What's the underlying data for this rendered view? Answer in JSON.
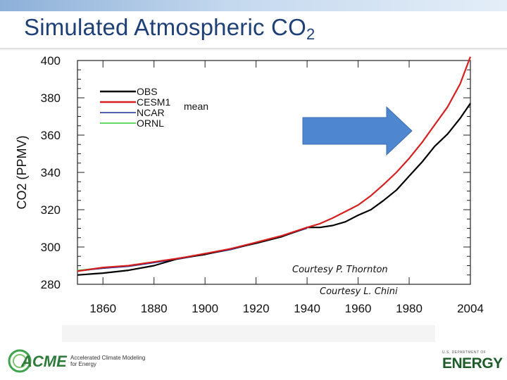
{
  "title": {
    "main": "Simulated Atmospheric CO",
    "sub": "2"
  },
  "credits": {
    "first": "Courtesy P. Thornton",
    "second": "Courtesy L. Chini"
  },
  "logos": {
    "acme": "ACME",
    "acme_tagline_1": "Accelerated Climate Modeling",
    "acme_tagline_2": "for Energy",
    "doe_small": "U.S. DEPARTMENT OF",
    "doe_big": "ENERGY"
  },
  "colors": {
    "title": "#1f3f77",
    "obs": "#000000",
    "cesm1": "#d62020",
    "ncar": "#1a2a9a",
    "ornl": "#33cc33",
    "arrow": "#4f86d0"
  },
  "chart_data": {
    "type": "line",
    "xlabel": "",
    "ylabel": "CO2 (PPMV)",
    "xlim": [
      1850,
      2004
    ],
    "ylim": [
      280,
      400
    ],
    "x_ticks": [
      1860,
      1880,
      1900,
      1920,
      1940,
      1960,
      1980,
      2004
    ],
    "x_tick_labels": [
      "1860",
      "1880",
      "1900",
      "1920",
      "1940",
      "1960",
      "1980",
      "2004"
    ],
    "y_ticks": [
      280,
      300,
      320,
      340,
      360,
      380,
      400
    ],
    "y_tick_labels": [
      "280",
      "300",
      "320",
      "340",
      "360",
      "380",
      "400"
    ],
    "legend": {
      "placement": "top-left",
      "entries": [
        "OBS",
        "CESM1",
        "NCAR",
        "ORNL"
      ],
      "annotation": "mean"
    },
    "series": [
      {
        "name": "OBS",
        "color": "#000000",
        "x": [
          1850,
          1860,
          1870,
          1880,
          1890,
          1900,
          1910,
          1920,
          1930,
          1940,
          1945,
          1950,
          1955,
          1960,
          1965,
          1970,
          1975,
          1980,
          1985,
          1990,
          1995,
          2000,
          2004
        ],
        "y": [
          285,
          286,
          287.5,
          290,
          294,
          296,
          299,
          302,
          305.5,
          310.5,
          310.5,
          311.5,
          313.5,
          317,
          320,
          325,
          330.5,
          338,
          345.5,
          354,
          360.5,
          369,
          377
        ]
      },
      {
        "name": "CESM1",
        "color": "#d62020",
        "x": [
          1850,
          1860,
          1870,
          1880,
          1890,
          1900,
          1910,
          1920,
          1930,
          1940,
          1945,
          1950,
          1955,
          1960,
          1965,
          1970,
          1975,
          1980,
          1985,
          1990,
          1995,
          2000,
          2004
        ],
        "y": [
          287,
          289,
          290,
          292,
          294,
          296.5,
          299,
          302.5,
          306,
          310.5,
          312.5,
          315.5,
          319,
          322.5,
          327.5,
          333.5,
          340,
          347.5,
          356,
          365.5,
          375,
          387.5,
          402
        ]
      },
      {
        "name": "NCAR",
        "color": "#1a2a9a",
        "x": [
          1850,
          1860,
          1870,
          1880,
          1890,
          1900,
          1910,
          1920,
          1930,
          1940
        ],
        "y": [
          287,
          288.5,
          289.5,
          291.5,
          293.5,
          296,
          298.5,
          302,
          305.5,
          310
        ]
      },
      {
        "name": "ORNL",
        "color": "#33cc33",
        "x": [
          1850,
          1860,
          1870,
          1880,
          1890,
          1900,
          1910,
          1920,
          1930,
          1940
        ],
        "y": [
          287.5,
          289,
          290,
          292,
          294,
          296.5,
          299,
          302.5,
          306,
          310.5
        ]
      }
    ]
  }
}
